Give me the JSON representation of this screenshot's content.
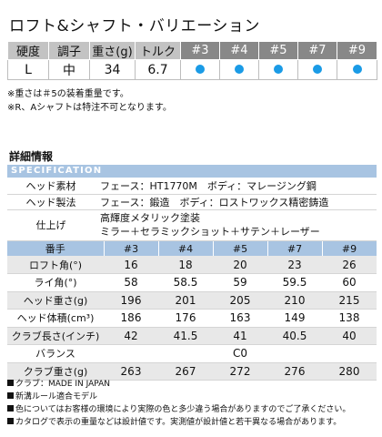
{
  "title": "ロフト&シャフト・バリエーション",
  "top_table": {
    "headers": [
      "硬度",
      "調子",
      "重さ(g)",
      "トルク",
      "#3",
      "#4",
      "#5",
      "#7",
      "#9"
    ],
    "row": [
      "L",
      "中",
      "34",
      "6.7"
    ]
  },
  "notes": [
    "※重さは＃5の装着重量です。",
    "※R、Aシャフトは特注不可となります。"
  ],
  "detail_title": "詳細情報",
  "spec_label": "SPECIFICATION",
  "spec_rows": [
    {
      "label": "ヘッド素材",
      "value": "フェース：HT1770M　ボディ：マレージング鋼"
    },
    {
      "label": "ヘッド製法",
      "value": "フェース：鍛造　ボディ：ロストワックス精密鋳造"
    },
    {
      "label": "仕上げ",
      "value1": "高輝度メタリック塗装",
      "value2": "ミラー＋セラミックショット＋サテン＋レーザー"
    }
  ],
  "main_table": {
    "header_label": "番手",
    "columns": [
      "#3",
      "#4",
      "#5",
      "#7",
      "#9"
    ],
    "rows": [
      {
        "label": "ロフト角(°)",
        "values": [
          "16",
          "18",
          "20",
          "23",
          "26"
        ]
      },
      {
        "label": "ライ角(°)",
        "values": [
          "58",
          "58.5",
          "59",
          "59.5",
          "60"
        ]
      },
      {
        "label": "ヘッド重さ(g)",
        "values": [
          "196",
          "201",
          "205",
          "210",
          "215"
        ]
      },
      {
        "label": "ヘッド体積(cm³)",
        "values": [
          "186",
          "176",
          "163",
          "149",
          "138"
        ]
      },
      {
        "label": "クラブ長さ(インチ)",
        "values": [
          "42",
          "41.5",
          "41",
          "40.5",
          "40"
        ]
      }
    ],
    "balance_label": "バランス",
    "balance_value": "C0",
    "weight_row": {
      "label": "クラブ重さ(g)",
      "values": [
        "263",
        "267",
        "272",
        "276",
        "280"
      ]
    }
  },
  "footnotes": [
    "クラブ：MADE IN JAPAN",
    "新溝ルール適合モデル",
    "色についてはお客様の環境により実際の色と多少違う場合がありますのでご了承ください。",
    "カタログで表示の重量などは設計値です。実測値が設計値と若干異なる場合があります。"
  ],
  "colors": {
    "dot": "#1a9be6",
    "header_gray": "#c3c3c3",
    "header_dark": "#888888",
    "spec_blue": "#a8c4e2"
  }
}
